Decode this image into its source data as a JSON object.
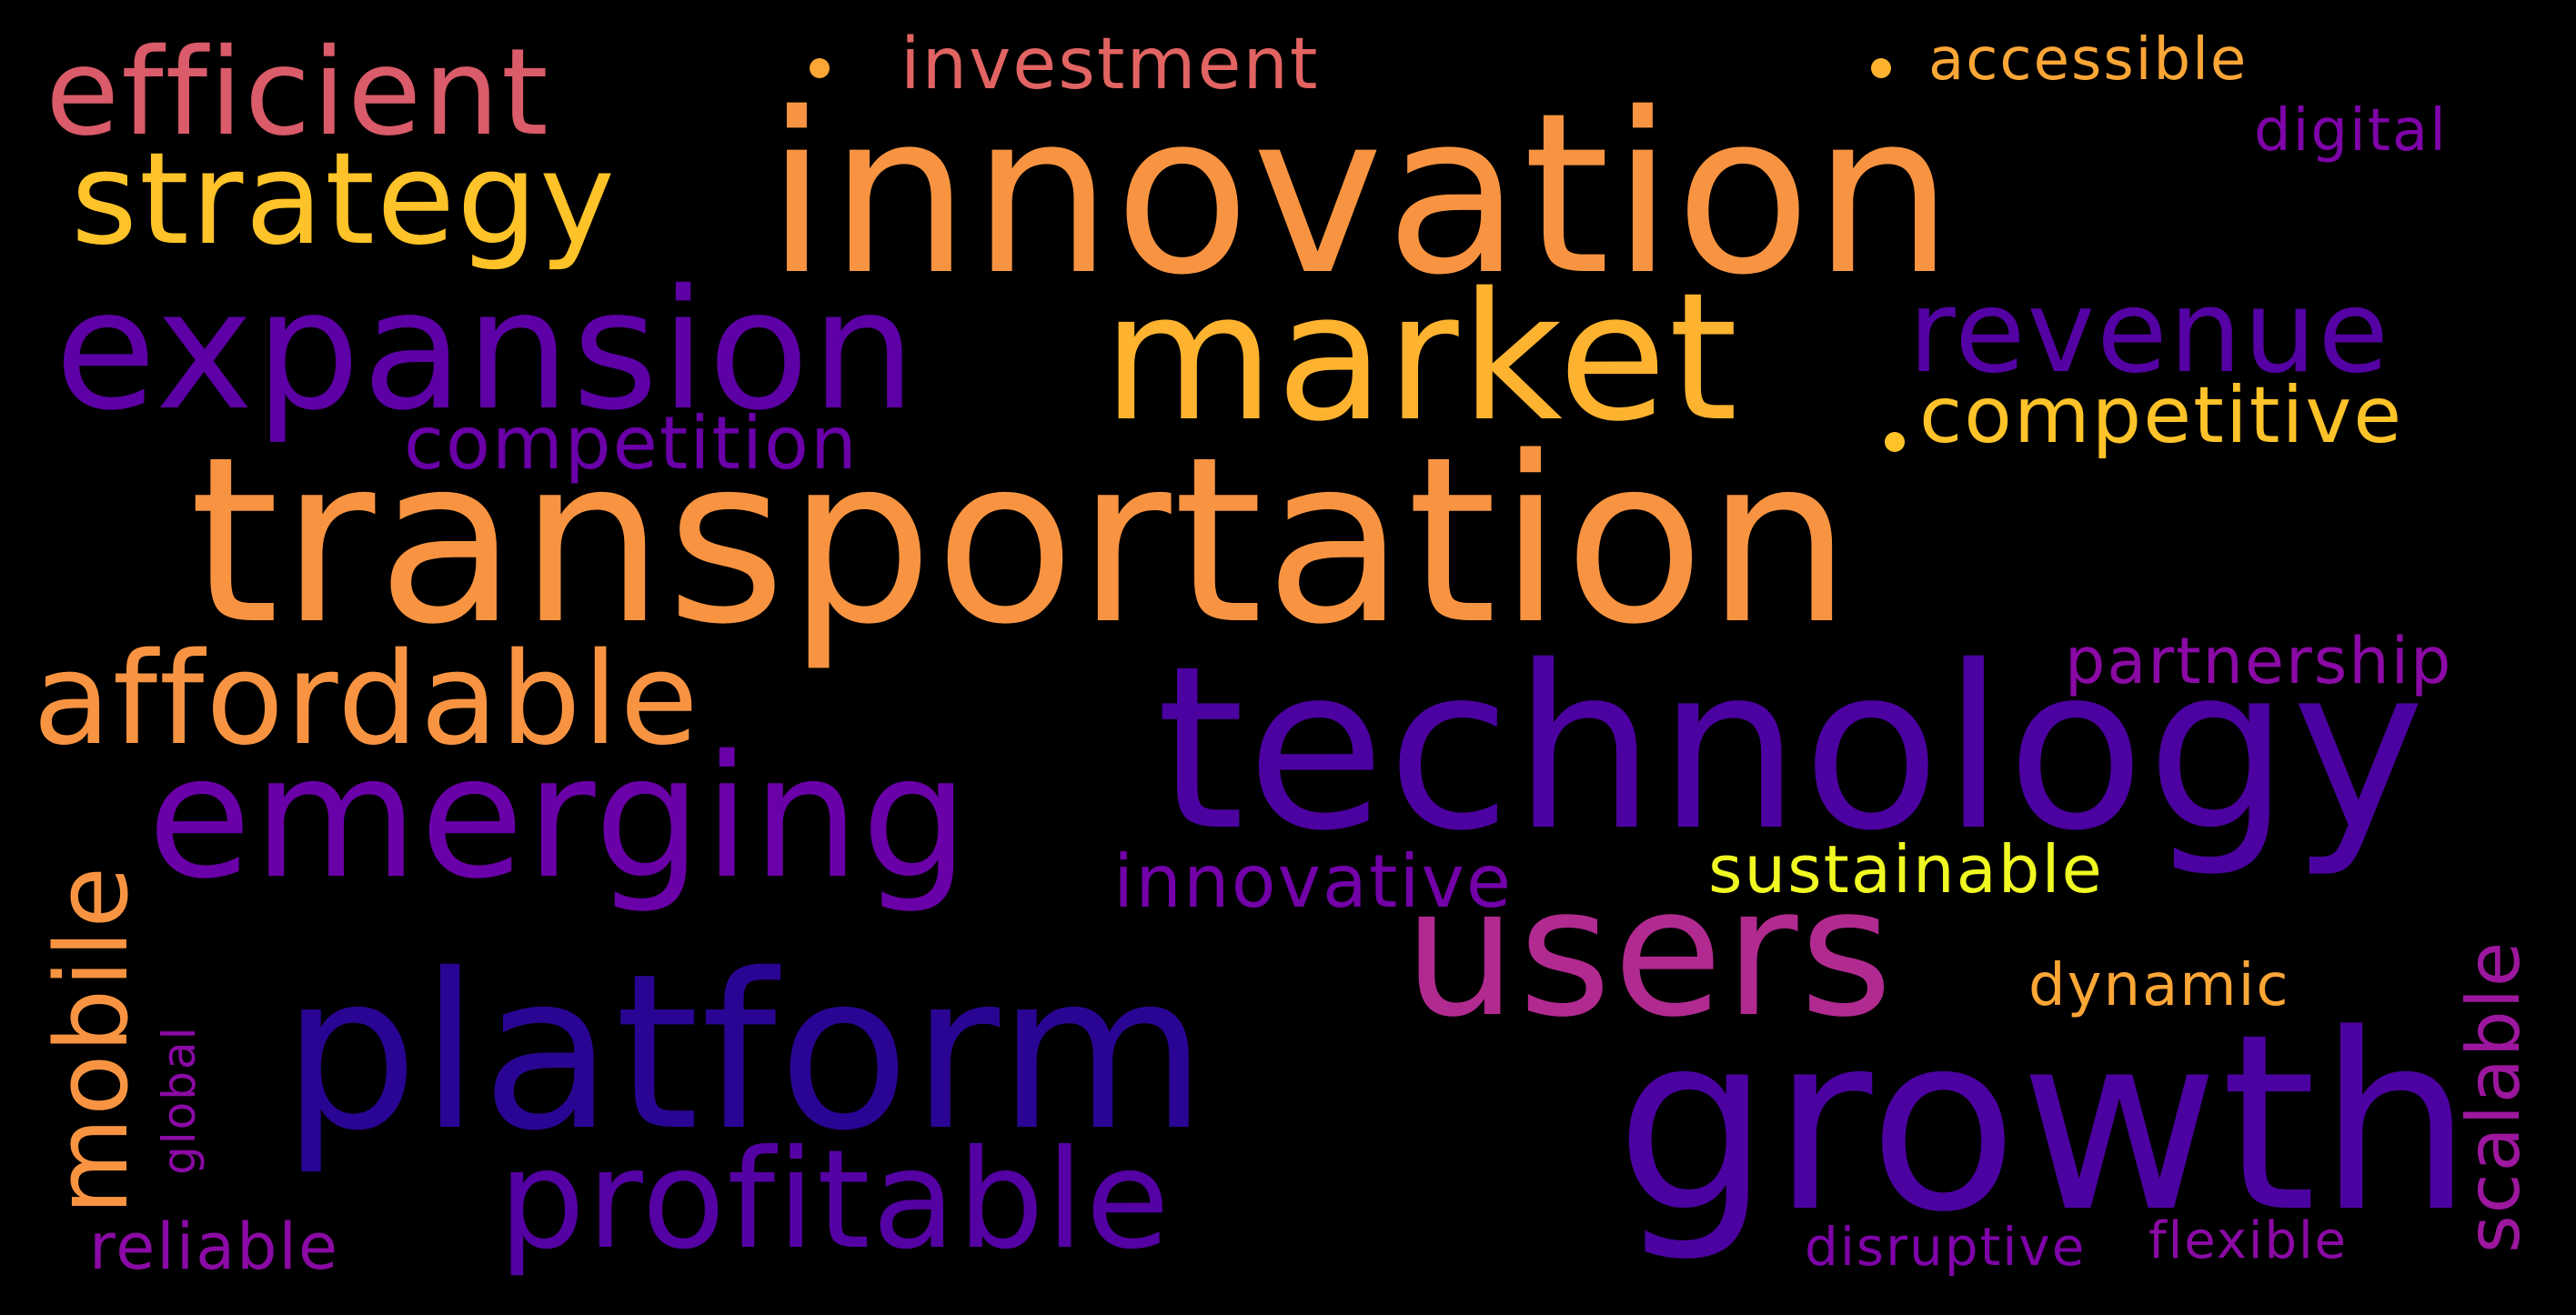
{
  "background": "#000000",
  "colormap": "plasma",
  "words": [
    {
      "id": "transportation",
      "text": "transportation",
      "color": "#F89441"
    },
    {
      "id": "innovation",
      "text": "innovation",
      "color": "#F89441"
    },
    {
      "id": "technology",
      "text": "technology",
      "color": "#4C02A1"
    },
    {
      "id": "growth",
      "text": "growth",
      "color": "#4C02A1"
    },
    {
      "id": "platform",
      "text": "platform",
      "color": "#2A0593"
    },
    {
      "id": "market",
      "text": "market",
      "color": "#FDB32F"
    },
    {
      "id": "expansion",
      "text": "expansion",
      "color": "#5D01A6"
    },
    {
      "id": "emerging",
      "text": "emerging",
      "color": "#6A00A8"
    },
    {
      "id": "users",
      "text": "users",
      "color": "#B12A90"
    },
    {
      "id": "profitable",
      "text": "profitable",
      "color": "#5402A3"
    },
    {
      "id": "affordable",
      "text": "affordable",
      "color": "#F89441"
    },
    {
      "id": "strategy",
      "text": "strategy",
      "color": "#FDC328"
    },
    {
      "id": "efficient",
      "text": "efficient",
      "color": "#DA5B69"
    },
    {
      "id": "revenue",
      "text": "revenue",
      "color": "#5402A3"
    },
    {
      "id": "mobile",
      "text": "mobile",
      "color": "#F89441"
    },
    {
      "id": "scalable",
      "text": "scalable",
      "color": "#9C179E"
    },
    {
      "id": "competitive",
      "text": "competitive",
      "color": "#FDC328"
    },
    {
      "id": "innovative",
      "text": "innovative",
      "color": "#7201A8"
    },
    {
      "id": "competition",
      "text": "competition",
      "color": "#6A00A8"
    },
    {
      "id": "partnership",
      "text": "partnership",
      "color": "#8B0AA5"
    },
    {
      "id": "sustainable",
      "text": "sustainable",
      "color": "#F0F921"
    },
    {
      "id": "investment",
      "text": "investment",
      "color": "#E16462"
    },
    {
      "id": "accessible",
      "text": "accessible",
      "color": "#FCA636"
    },
    {
      "id": "digital",
      "text": "digital",
      "color": "#7E03A8"
    },
    {
      "id": "dynamic",
      "text": "dynamic",
      "color": "#FCA636"
    },
    {
      "id": "reliable",
      "text": "reliable",
      "color": "#8B0AA5"
    },
    {
      "id": "disruptive",
      "text": "disruptive",
      "color": "#7E03A8"
    },
    {
      "id": "flexible",
      "text": "flexible",
      "color": "#8B0AA5"
    },
    {
      "id": "global",
      "text": "global",
      "color": "#8B0AA5"
    }
  ],
  "dots": [
    {
      "id": "dot-1",
      "color": "#FCA636"
    },
    {
      "id": "dot-2",
      "color": "#FDB32F"
    },
    {
      "id": "dot-3",
      "color": "#FDC328"
    }
  ]
}
